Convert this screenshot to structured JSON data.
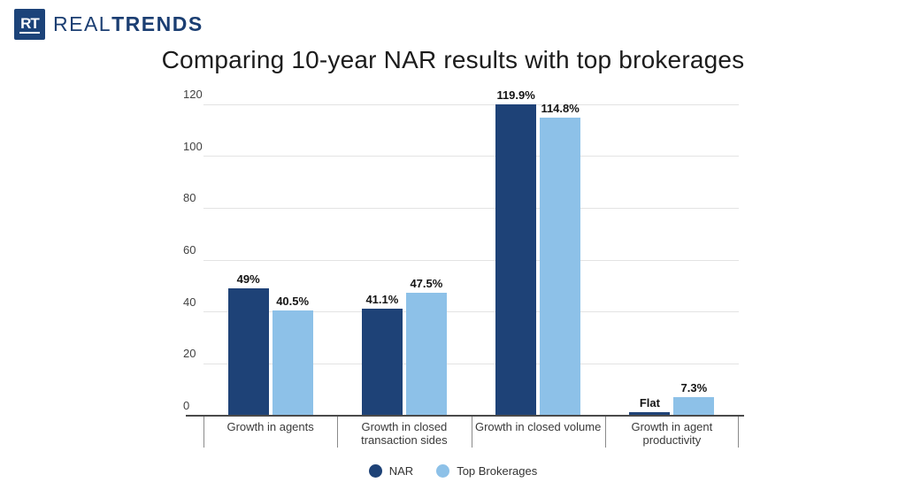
{
  "logo": {
    "icon_text": "RT",
    "brand_light": "REAL",
    "brand_bold": "TRENDS"
  },
  "colors": {
    "brand_navy": "#1c4379",
    "nar_bar": "#1e4277",
    "top_brokerages_bar": "#8dc1e8"
  },
  "chart_data": {
    "type": "bar",
    "title": "Comparing 10-year NAR results with top brokerages",
    "categories": [
      "Growth in agents",
      "Growth in closed transaction sides",
      "Growth in closed volume",
      "Growth in agent productivity"
    ],
    "series": [
      {
        "name": "NAR",
        "color": "#1e4277",
        "values": [
          49,
          41.1,
          119.9,
          1.4
        ],
        "labels": [
          "49%",
          "41.1%",
          "119.9%",
          "Flat"
        ]
      },
      {
        "name": "Top Brokerages",
        "color": "#8dc1e8",
        "values": [
          40.5,
          47.5,
          114.8,
          7.3
        ],
        "labels": [
          "40.5%",
          "47.5%",
          "114.8%",
          "7.3%"
        ]
      }
    ],
    "ylim": [
      0,
      120
    ],
    "ytick_step": 20,
    "yticks": [
      0,
      20,
      40,
      60,
      80,
      100,
      120
    ],
    "grid": true,
    "legend_position": "bottom"
  }
}
